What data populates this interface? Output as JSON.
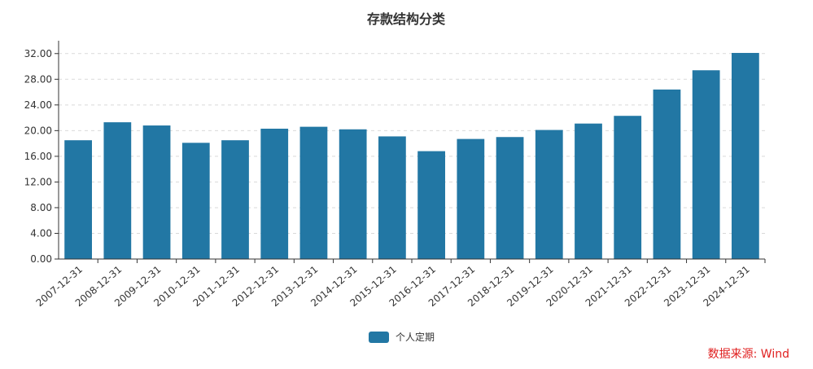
{
  "chart_data": {
    "type": "bar",
    "title": "存款结构分类",
    "xlabel": "",
    "ylabel": "",
    "categories": [
      "2007-12-31",
      "2008-12-31",
      "2009-12-31",
      "2010-12-31",
      "2011-12-31",
      "2012-12-31",
      "2013-12-31",
      "2014-12-31",
      "2015-12-31",
      "2016-12-31",
      "2017-12-31",
      "2018-12-31",
      "2019-12-31",
      "2020-12-31",
      "2021-12-31",
      "2022-12-31",
      "2023-12-31",
      "2024-12-31"
    ],
    "series": [
      {
        "name": "个人定期",
        "color": "#2277a4",
        "values": [
          18.5,
          21.3,
          20.8,
          18.1,
          18.5,
          20.3,
          20.6,
          20.2,
          19.1,
          16.8,
          18.7,
          19.0,
          20.1,
          21.1,
          22.3,
          26.4,
          29.4,
          32.1
        ]
      }
    ],
    "ylim": [
      0,
      34
    ],
    "yticks": [
      "0.00",
      "4.00",
      "8.00",
      "12.00",
      "16.00",
      "20.00",
      "24.00",
      "28.00",
      "32.00"
    ],
    "grid": true,
    "legend_position": "bottom-center"
  },
  "source_note": "数据来源: Wind"
}
